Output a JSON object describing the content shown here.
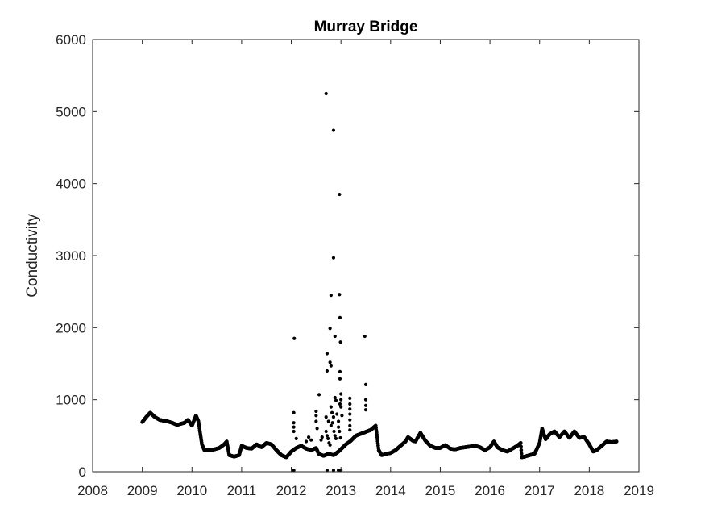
{
  "chart_data": {
    "type": "scatter",
    "title": "Murray Bridge",
    "xlabel": "",
    "ylabel": "Conductivity",
    "xlim": [
      2008,
      2019
    ],
    "ylim": [
      0,
      6000
    ],
    "xticks": [
      "2008",
      "2009",
      "2010",
      "2011",
      "2012",
      "2013",
      "2014",
      "2015",
      "2016",
      "2017",
      "2018",
      "2019"
    ],
    "yticks": [
      "0",
      "1000",
      "2000",
      "3000",
      "4000",
      "5000",
      "6000"
    ],
    "grid": false,
    "legend": "none",
    "colors": {
      "marker": "#000000",
      "axis": "#262626"
    },
    "baseline": [
      [
        2009.0,
        690
      ],
      [
        2009.08,
        760
      ],
      [
        2009.16,
        820
      ],
      [
        2009.25,
        760
      ],
      [
        2009.35,
        720
      ],
      [
        2009.5,
        700
      ],
      [
        2009.6,
        680
      ],
      [
        2009.7,
        650
      ],
      [
        2009.85,
        680
      ],
      [
        2009.92,
        720
      ],
      [
        2010.0,
        640
      ],
      [
        2010.08,
        780
      ],
      [
        2010.13,
        700
      ],
      [
        2010.2,
        380
      ],
      [
        2010.25,
        300
      ],
      [
        2010.4,
        300
      ],
      [
        2010.55,
        330
      ],
      [
        2010.65,
        380
      ],
      [
        2010.7,
        420
      ],
      [
        2010.75,
        230
      ],
      [
        2010.85,
        210
      ],
      [
        2010.95,
        230
      ],
      [
        2011.0,
        360
      ],
      [
        2011.1,
        330
      ],
      [
        2011.2,
        320
      ],
      [
        2011.3,
        380
      ],
      [
        2011.4,
        340
      ],
      [
        2011.5,
        400
      ],
      [
        2011.6,
        380
      ],
      [
        2011.7,
        300
      ],
      [
        2011.8,
        230
      ],
      [
        2011.9,
        200
      ],
      [
        2012.0,
        280
      ],
      [
        2012.1,
        330
      ],
      [
        2012.2,
        360
      ],
      [
        2012.3,
        320
      ],
      [
        2012.4,
        300
      ],
      [
        2012.5,
        330
      ],
      [
        2012.55,
        250
      ],
      [
        2012.65,
        220
      ],
      [
        2012.75,
        250
      ],
      [
        2012.85,
        230
      ],
      [
        2012.95,
        280
      ],
      [
        2013.1,
        380
      ],
      [
        2013.2,
        430
      ],
      [
        2013.3,
        500
      ],
      [
        2013.45,
        540
      ],
      [
        2013.6,
        580
      ],
      [
        2013.7,
        640
      ],
      [
        2013.76,
        300
      ],
      [
        2013.82,
        230
      ],
      [
        2013.92,
        250
      ],
      [
        2014.0,
        260
      ],
      [
        2014.1,
        300
      ],
      [
        2014.2,
        360
      ],
      [
        2014.3,
        420
      ],
      [
        2014.35,
        480
      ],
      [
        2014.45,
        430
      ],
      [
        2014.5,
        420
      ],
      [
        2014.6,
        540
      ],
      [
        2014.7,
        430
      ],
      [
        2014.8,
        360
      ],
      [
        2014.9,
        330
      ],
      [
        2015.0,
        330
      ],
      [
        2015.1,
        370
      ],
      [
        2015.2,
        320
      ],
      [
        2015.3,
        310
      ],
      [
        2015.4,
        330
      ],
      [
        2015.5,
        340
      ],
      [
        2015.6,
        350
      ],
      [
        2015.7,
        360
      ],
      [
        2015.8,
        340
      ],
      [
        2015.9,
        300
      ],
      [
        2016.0,
        340
      ],
      [
        2016.08,
        420
      ],
      [
        2016.15,
        340
      ],
      [
        2016.25,
        300
      ],
      [
        2016.35,
        280
      ],
      [
        2016.45,
        320
      ],
      [
        2016.55,
        360
      ],
      [
        2016.62,
        400
      ],
      [
        2016.64,
        200
      ],
      [
        2016.7,
        210
      ],
      [
        2016.8,
        230
      ],
      [
        2016.9,
        250
      ],
      [
        2017.0,
        400
      ],
      [
        2017.05,
        600
      ],
      [
        2017.12,
        450
      ],
      [
        2017.2,
        520
      ],
      [
        2017.3,
        560
      ],
      [
        2017.4,
        480
      ],
      [
        2017.5,
        560
      ],
      [
        2017.6,
        470
      ],
      [
        2017.7,
        560
      ],
      [
        2017.8,
        470
      ],
      [
        2017.9,
        480
      ],
      [
        2018.0,
        380
      ],
      [
        2018.08,
        280
      ],
      [
        2018.15,
        300
      ],
      [
        2018.25,
        360
      ],
      [
        2018.35,
        420
      ],
      [
        2018.45,
        410
      ],
      [
        2018.55,
        420
      ]
    ],
    "outliers": [
      [
        2012.7,
        5250
      ],
      [
        2012.85,
        4740
      ],
      [
        2012.97,
        3850
      ],
      [
        2012.85,
        2970
      ],
      [
        2012.8,
        2450
      ],
      [
        2012.97,
        2460
      ],
      [
        2012.98,
        2140
      ],
      [
        2012.78,
        1990
      ],
      [
        2012.88,
        1880
      ],
      [
        2012.99,
        1800
      ],
      [
        2012.06,
        1850
      ],
      [
        2013.48,
        1880
      ],
      [
        2012.72,
        1640
      ],
      [
        2012.78,
        1520
      ],
      [
        2012.8,
        1470
      ],
      [
        2012.72,
        1400
      ],
      [
        2012.98,
        1390
      ],
      [
        2012.98,
        1290
      ],
      [
        2013.5,
        1210
      ],
      [
        2012.56,
        1070
      ],
      [
        2012.88,
        1030
      ],
      [
        2012.9,
        990
      ],
      [
        2013.0,
        1080
      ],
      [
        2013.0,
        1000
      ],
      [
        2013.18,
        1020
      ],
      [
        2013.18,
        940
      ],
      [
        2013.18,
        870
      ],
      [
        2013.5,
        1000
      ],
      [
        2013.5,
        920
      ],
      [
        2013.5,
        860
      ],
      [
        2012.05,
        820
      ],
      [
        2012.05,
        680
      ],
      [
        2012.05,
        620
      ],
      [
        2012.05,
        560
      ],
      [
        2012.1,
        460
      ],
      [
        2012.5,
        840
      ],
      [
        2012.5,
        780
      ],
      [
        2012.5,
        700
      ],
      [
        2012.52,
        600
      ],
      [
        2012.7,
        760
      ],
      [
        2012.75,
        700
      ],
      [
        2012.8,
        640
      ],
      [
        2012.82,
        820
      ],
      [
        2012.85,
        760
      ],
      [
        2012.86,
        560
      ],
      [
        2012.88,
        500
      ],
      [
        2012.9,
        460
      ],
      [
        2012.92,
        800
      ],
      [
        2012.95,
        620
      ],
      [
        2012.98,
        940
      ],
      [
        2013.0,
        900
      ],
      [
        2013.02,
        780
      ],
      [
        2013.18,
        800
      ],
      [
        2013.18,
        720
      ],
      [
        2013.18,
        640
      ],
      [
        2013.18,
        580
      ],
      [
        2012.7,
        560
      ],
      [
        2012.72,
        500
      ],
      [
        2012.74,
        460
      ],
      [
        2012.76,
        400
      ],
      [
        2012.78,
        370
      ],
      [
        2012.8,
        900
      ],
      [
        2012.83,
        680
      ],
      [
        2012.95,
        700
      ],
      [
        2012.97,
        560
      ],
      [
        2012.99,
        470
      ],
      [
        2012.3,
        420
      ],
      [
        2012.35,
        480
      ],
      [
        2012.4,
        440
      ],
      [
        2012.6,
        440
      ],
      [
        2012.62,
        480
      ],
      [
        2012.72,
        20
      ],
      [
        2012.85,
        20
      ],
      [
        2012.95,
        20
      ],
      [
        2013.0,
        20
      ],
      [
        2012.05,
        20
      ]
    ]
  }
}
